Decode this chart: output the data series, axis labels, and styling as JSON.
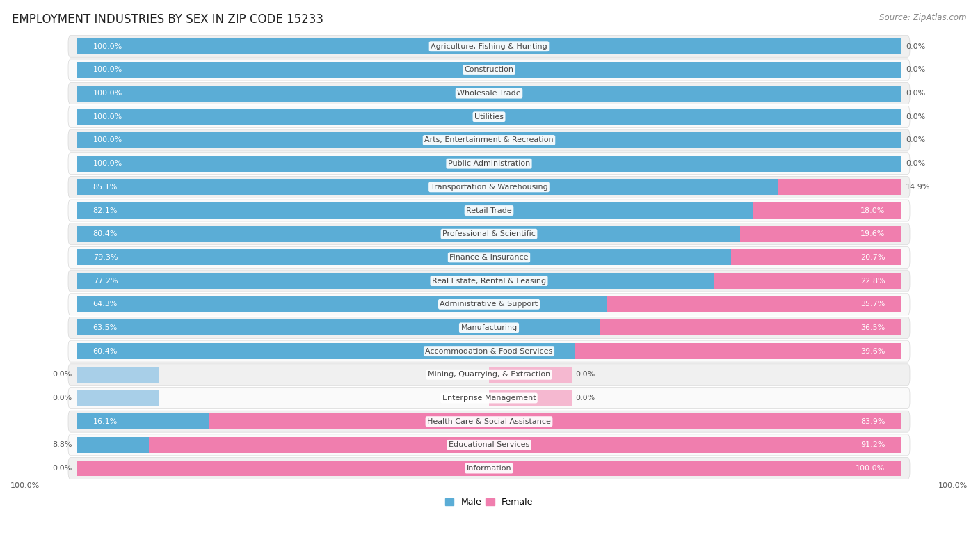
{
  "title": "EMPLOYMENT INDUSTRIES BY SEX IN ZIP CODE 15233",
  "source": "Source: ZipAtlas.com",
  "industries": [
    "Agriculture, Fishing & Hunting",
    "Construction",
    "Wholesale Trade",
    "Utilities",
    "Arts, Entertainment & Recreation",
    "Public Administration",
    "Transportation & Warehousing",
    "Retail Trade",
    "Professional & Scientific",
    "Finance & Insurance",
    "Real Estate, Rental & Leasing",
    "Administrative & Support",
    "Manufacturing",
    "Accommodation & Food Services",
    "Mining, Quarrying, & Extraction",
    "Enterprise Management",
    "Health Care & Social Assistance",
    "Educational Services",
    "Information"
  ],
  "male_pct": [
    100.0,
    100.0,
    100.0,
    100.0,
    100.0,
    100.0,
    85.1,
    82.1,
    80.4,
    79.3,
    77.2,
    64.3,
    63.5,
    60.4,
    0.0,
    0.0,
    16.1,
    8.8,
    0.0
  ],
  "female_pct": [
    0.0,
    0.0,
    0.0,
    0.0,
    0.0,
    0.0,
    14.9,
    18.0,
    19.6,
    20.7,
    22.8,
    35.7,
    36.5,
    39.6,
    0.0,
    0.0,
    83.9,
    91.2,
    100.0
  ],
  "male_color": "#5badd6",
  "female_color": "#f07eae",
  "male_stub_color": "#a8cfe8",
  "female_stub_color": "#f5b8d0",
  "row_bg_odd": "#f0f0f0",
  "row_bg_even": "#fafafa",
  "row_border_color": "#d8d8d8",
  "label_font_color": "#444444",
  "pct_inside_color": "#ffffff",
  "pct_outside_color": "#555555",
  "title_fontsize": 12,
  "source_fontsize": 8.5,
  "label_fontsize": 8.0,
  "pct_fontsize": 8.0,
  "legend_fontsize": 9,
  "axis_tick_fontsize": 8
}
